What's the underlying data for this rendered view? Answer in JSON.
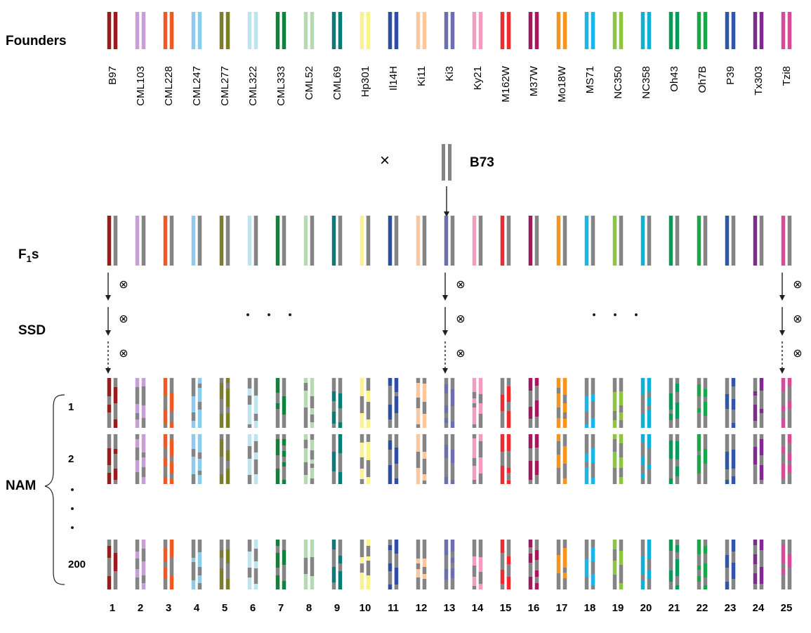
{
  "labels": {
    "founders": "Founders",
    "f1_main": "F",
    "f1_sub": "1",
    "f1_tail": "s",
    "ssd": "SSD",
    "nam": "NAM",
    "b73": "B73",
    "cross_symbol": "×",
    "self_symbol": "⊗",
    "row_labels": [
      "1",
      "2",
      "200"
    ],
    "vertical_dots": "• • •",
    "horizontal_dots": "• • •"
  },
  "founders": [
    {
      "name": "B97",
      "color": "#9b1c1f",
      "number": "1"
    },
    {
      "name": "CML103",
      "color": "#c79fd4",
      "number": "2"
    },
    {
      "name": "CML228",
      "color": "#f05a22",
      "number": "3"
    },
    {
      "name": "CML247",
      "color": "#8ccbeb",
      "number": "4"
    },
    {
      "name": "CML277",
      "color": "#7d7d2b",
      "number": "5"
    },
    {
      "name": "CML322",
      "color": "#bde5f0",
      "number": "6"
    },
    {
      "name": "CML333",
      "color": "#11823b",
      "number": "7"
    },
    {
      "name": "CML52",
      "color": "#b6dbb3",
      "number": "8"
    },
    {
      "name": "CML69",
      "color": "#0b7b78",
      "number": "9"
    },
    {
      "name": "Hp301",
      "color": "#fbf28d",
      "number": "10"
    },
    {
      "name": "Il14H",
      "color": "#2f4fa2",
      "number": "11"
    },
    {
      "name": "Ki11",
      "color": "#fdc69b",
      "number": "12"
    },
    {
      "name": "Ki3",
      "color": "#6a6fb0",
      "number": "13"
    },
    {
      "name": "Ky21",
      "color": "#f59cc0",
      "number": "14"
    },
    {
      "name": "M162W",
      "color": "#ee2b2e",
      "number": "15"
    },
    {
      "name": "M37W",
      "color": "#a4195d",
      "number": "16"
    },
    {
      "name": "Mo18W",
      "color": "#f7941d",
      "number": "17"
    },
    {
      "name": "MS71",
      "color": "#1bb5e6",
      "number": "18"
    },
    {
      "name": "NC350",
      "color": "#8cc63f",
      "number": "19"
    },
    {
      "name": "NC358",
      "color": "#0db0d6",
      "number": "20"
    },
    {
      "name": "Oh43",
      "color": "#069b58",
      "number": "21"
    },
    {
      "name": "Oh7B",
      "color": "#1aa64a",
      "number": "22"
    },
    {
      "name": "P39",
      "color": "#3057a7",
      "number": "23"
    },
    {
      "name": "Tx303",
      "color": "#7f2b8e",
      "number": "24"
    },
    {
      "name": "Tzi8",
      "color": "#d9499a",
      "number": "25"
    }
  ],
  "colors": {
    "b73_gray": "#848484",
    "text": "#231f20"
  }
}
